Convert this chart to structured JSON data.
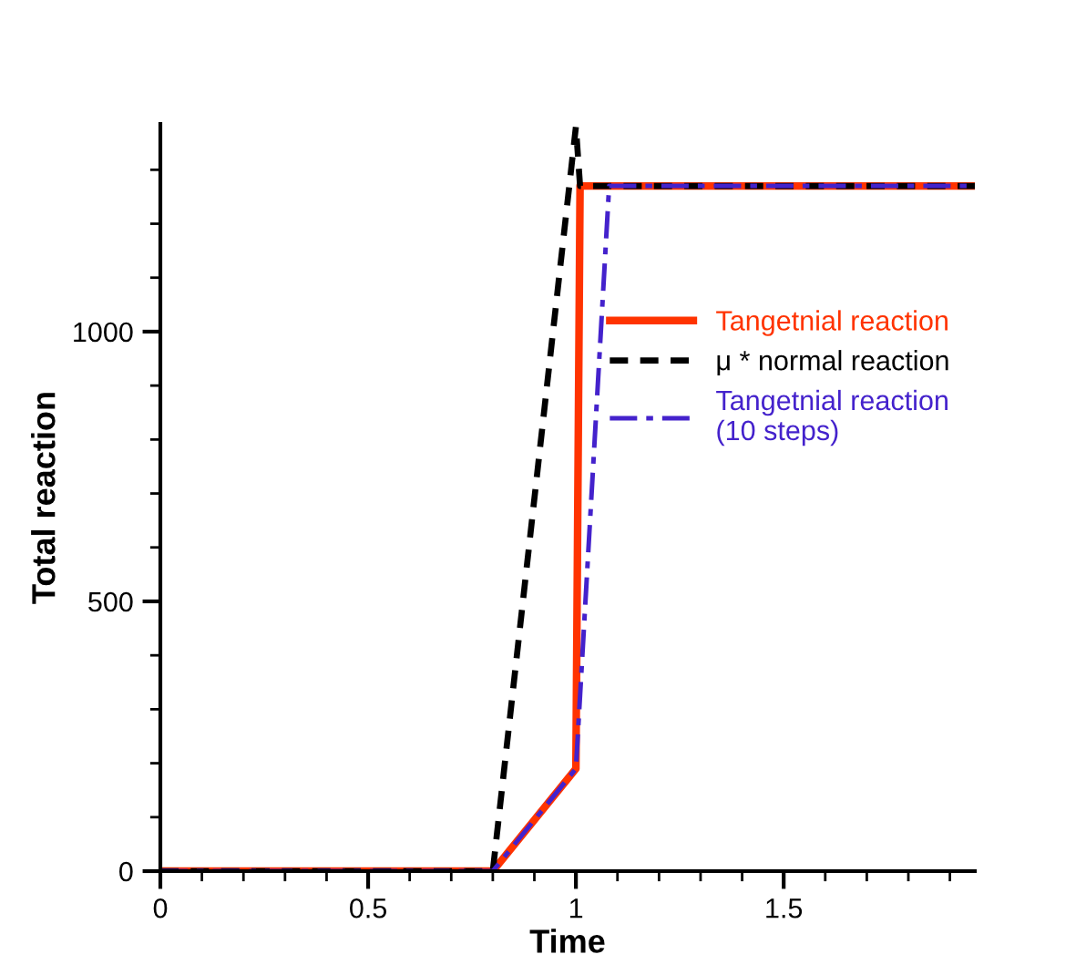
{
  "chart_data": {
    "type": "line",
    "xlabel": "Time",
    "ylabel": "Total reaction",
    "xlim": [
      0,
      1.96
    ],
    "ylim": [
      0,
      1385
    ],
    "xticks": [
      0,
      0.5,
      1,
      1.5
    ],
    "yticks": [
      0,
      500,
      1000
    ],
    "legend": "right",
    "grid": false,
    "series": [
      {
        "name": "Tangetnial reaction",
        "color": "#ff3300",
        "line_style": "solid",
        "x": [
          0,
          0.8,
          1.0,
          1.01,
          1.96
        ],
        "values": [
          0,
          0,
          190,
          1270,
          1270
        ]
      },
      {
        "name": "μ * normal reaction",
        "color": "#000000",
        "line_style": "dashed",
        "x": [
          0,
          0.8,
          1.0,
          1.01,
          1.96
        ],
        "values": [
          0,
          0,
          1380,
          1270,
          1270
        ]
      },
      {
        "name": "Tangetnial reaction\n(10 steps)",
        "color": "#4422cc",
        "line_style": "dashdot",
        "x": [
          0,
          0.8,
          1.0,
          1.08,
          1.96
        ],
        "values": [
          0,
          0,
          190,
          1270,
          1270
        ]
      }
    ]
  }
}
